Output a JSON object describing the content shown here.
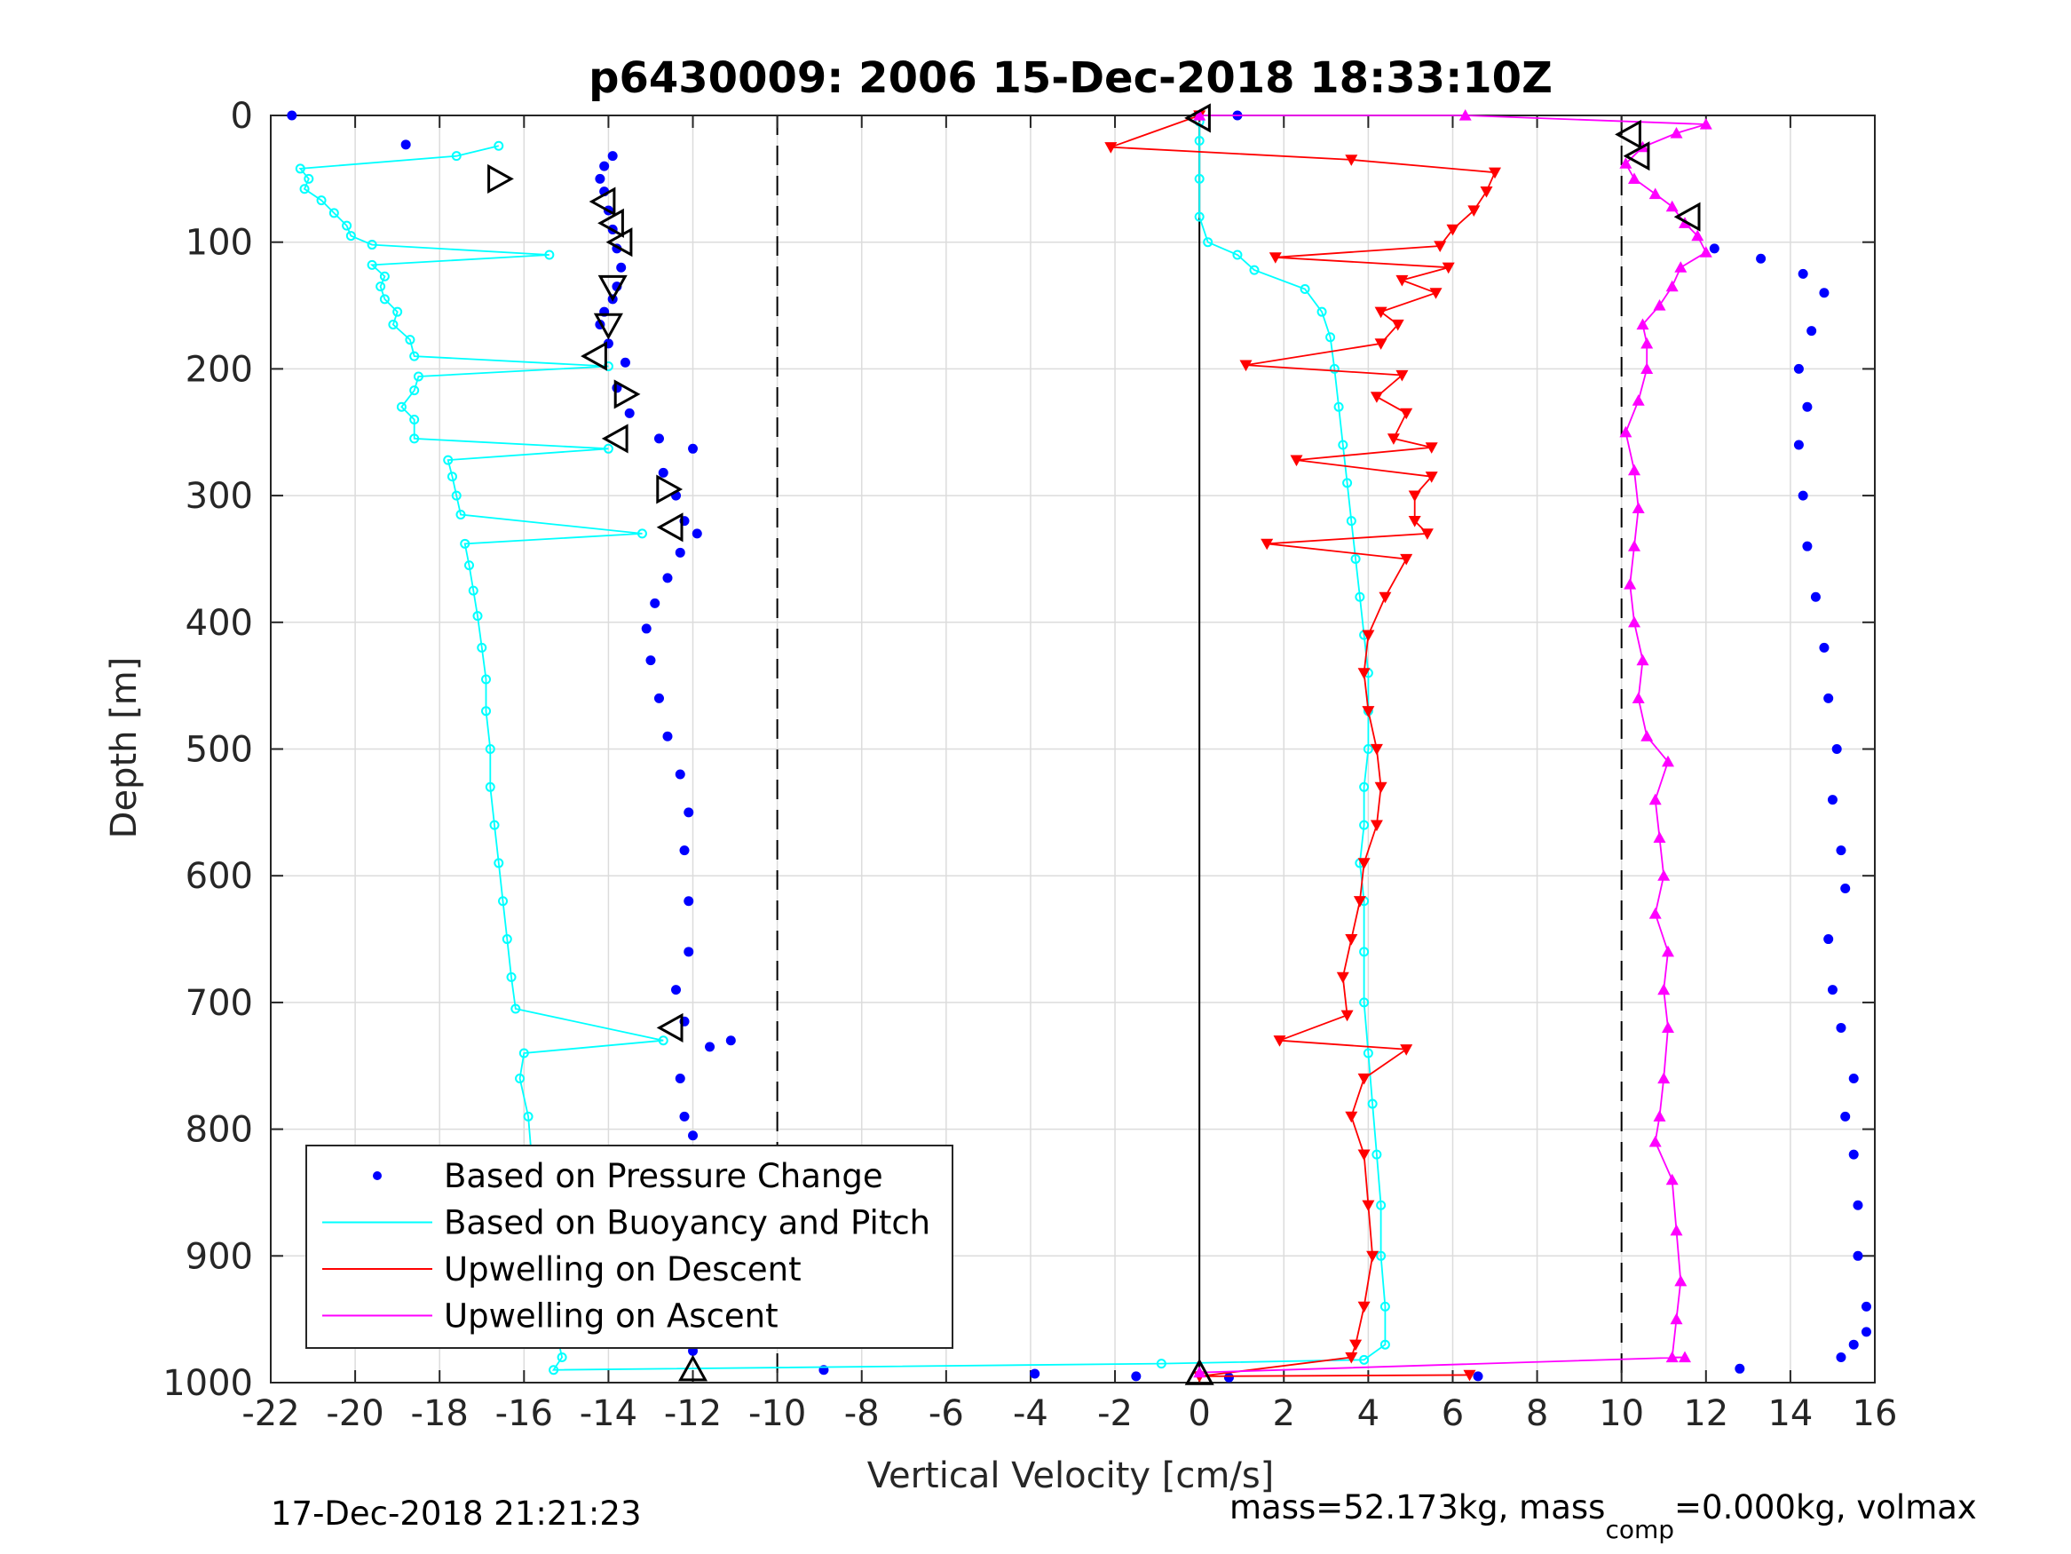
{
  "chart_data": {
    "type": "scatter",
    "title": "p6430009:  2006 15-Dec-2018 18:33:10Z",
    "xlabel": "Vertical Velocity [cm/s]",
    "ylabel": "Depth [m]",
    "xlim": [
      -22,
      16
    ],
    "ylim": [
      0,
      1000
    ],
    "y_reversed": true,
    "grid": true,
    "x_ticks": [
      -22,
      -20,
      -18,
      -16,
      -14,
      -12,
      -10,
      -8,
      -6,
      -4,
      -2,
      0,
      2,
      4,
      6,
      8,
      10,
      12,
      14,
      16
    ],
    "y_ticks": [
      0,
      100,
      200,
      300,
      400,
      500,
      600,
      700,
      800,
      900,
      1000
    ],
    "reference_lines": [
      {
        "x": -10,
        "style": "dashed"
      },
      {
        "x": 0,
        "style": "solid"
      },
      {
        "x": 10,
        "style": "dashed"
      }
    ],
    "legend": {
      "position": "bottom-left",
      "entries": [
        {
          "label": "Based on Pressure Change",
          "color": "#0000ff",
          "marker": "dot"
        },
        {
          "label": "Based on Buoyancy and Pitch",
          "color": "#00ffff",
          "marker": "line"
        },
        {
          "label": "Upwelling on Descent",
          "color": "#ff0000",
          "marker": "line"
        },
        {
          "label": "Upwelling on Ascent",
          "color": "#ff00ff",
          "marker": "line"
        }
      ]
    },
    "series": [
      {
        "name": "Based on Pressure Change",
        "color": "#0000ff",
        "style": "dots",
        "points": [
          [
            -21.5,
            0
          ],
          [
            -18.8,
            23
          ],
          [
            -13.9,
            32
          ],
          [
            -14.1,
            40
          ],
          [
            -14.2,
            50
          ],
          [
            -14.1,
            60
          ],
          [
            -14.0,
            75
          ],
          [
            -13.9,
            90
          ],
          [
            -13.8,
            105
          ],
          [
            -13.7,
            120
          ],
          [
            -13.8,
            135
          ],
          [
            -13.9,
            145
          ],
          [
            -14.1,
            155
          ],
          [
            -14.2,
            165
          ],
          [
            -14.0,
            180
          ],
          [
            -13.6,
            195
          ],
          [
            -13.8,
            215
          ],
          [
            -13.5,
            235
          ],
          [
            -12.8,
            255
          ],
          [
            -12.0,
            263
          ],
          [
            -12.7,
            282
          ],
          [
            -12.4,
            300
          ],
          [
            -12.2,
            320
          ],
          [
            -11.9,
            330
          ],
          [
            -12.3,
            345
          ],
          [
            -12.6,
            365
          ],
          [
            -12.9,
            385
          ],
          [
            -13.1,
            405
          ],
          [
            -13.0,
            430
          ],
          [
            -12.8,
            460
          ],
          [
            -12.6,
            490
          ],
          [
            -12.3,
            520
          ],
          [
            -12.1,
            550
          ],
          [
            -12.2,
            580
          ],
          [
            -12.1,
            620
          ],
          [
            -12.1,
            660
          ],
          [
            -12.4,
            690
          ],
          [
            -12.2,
            715
          ],
          [
            -11.1,
            730
          ],
          [
            -11.6,
            735
          ],
          [
            -12.3,
            760
          ],
          [
            -12.2,
            790
          ],
          [
            -12.0,
            805
          ],
          [
            -12.0,
            830
          ],
          [
            -12.0,
            860
          ],
          [
            -12.0,
            890
          ],
          [
            -12.0,
            920
          ],
          [
            -12.0,
            950
          ],
          [
            -12.0,
            975
          ],
          [
            -8.9,
            990
          ],
          [
            -3.9,
            993
          ],
          [
            -1.5,
            995
          ],
          [
            0.7,
            996
          ],
          [
            6.6,
            995
          ],
          [
            12.8,
            989
          ],
          [
            15.2,
            980
          ],
          [
            15.5,
            970
          ],
          [
            15.8,
            960
          ],
          [
            15.8,
            940
          ],
          [
            15.6,
            900
          ],
          [
            15.6,
            860
          ],
          [
            15.5,
            820
          ],
          [
            15.3,
            790
          ],
          [
            15.5,
            760
          ],
          [
            15.2,
            720
          ],
          [
            15.0,
            690
          ],
          [
            14.9,
            650
          ],
          [
            15.3,
            610
          ],
          [
            15.2,
            580
          ],
          [
            15.0,
            540
          ],
          [
            15.1,
            500
          ],
          [
            14.9,
            460
          ],
          [
            14.8,
            420
          ],
          [
            14.6,
            380
          ],
          [
            14.4,
            340
          ],
          [
            14.3,
            300
          ],
          [
            14.2,
            260
          ],
          [
            14.4,
            230
          ],
          [
            14.2,
            200
          ],
          [
            14.5,
            170
          ],
          [
            14.8,
            140
          ],
          [
            14.3,
            125
          ],
          [
            13.3,
            113
          ],
          [
            12.2,
            105
          ],
          [
            0.9,
            0
          ]
        ]
      },
      {
        "name": "Based on Buoyancy and Pitch",
        "color": "#00ffff",
        "style": "line-circles",
        "points": [
          [
            -16.6,
            24
          ],
          [
            -17.6,
            32
          ],
          [
            -21.3,
            42
          ],
          [
            -21.1,
            50
          ],
          [
            -21.2,
            58
          ],
          [
            -20.8,
            67
          ],
          [
            -20.5,
            77
          ],
          [
            -20.2,
            87
          ],
          [
            -20.1,
            95
          ],
          [
            -19.6,
            102
          ],
          [
            -15.4,
            110
          ],
          [
            -19.6,
            118
          ],
          [
            -19.3,
            127
          ],
          [
            -19.4,
            135
          ],
          [
            -19.3,
            145
          ],
          [
            -19.0,
            155
          ],
          [
            -19.1,
            165
          ],
          [
            -18.7,
            177
          ],
          [
            -18.6,
            190
          ],
          [
            -14.0,
            198
          ],
          [
            -18.5,
            206
          ],
          [
            -18.6,
            217
          ],
          [
            -18.9,
            230
          ],
          [
            -18.6,
            240
          ],
          [
            -18.6,
            255
          ],
          [
            -14.0,
            263
          ],
          [
            -17.8,
            272
          ],
          [
            -17.7,
            285
          ],
          [
            -17.6,
            300
          ],
          [
            -17.5,
            315
          ],
          [
            -13.2,
            330
          ],
          [
            -17.4,
            338
          ],
          [
            -17.3,
            355
          ],
          [
            -17.2,
            375
          ],
          [
            -17.1,
            395
          ],
          [
            -17.0,
            420
          ],
          [
            -16.9,
            445
          ],
          [
            -16.9,
            470
          ],
          [
            -16.8,
            500
          ],
          [
            -16.8,
            530
          ],
          [
            -16.7,
            560
          ],
          [
            -16.6,
            590
          ],
          [
            -16.5,
            620
          ],
          [
            -16.4,
            650
          ],
          [
            -16.3,
            680
          ],
          [
            -16.2,
            705
          ],
          [
            -12.7,
            730
          ],
          [
            -16.0,
            740
          ],
          [
            -16.1,
            760
          ],
          [
            -15.9,
            790
          ],
          [
            -15.8,
            830
          ],
          [
            -15.6,
            870
          ],
          [
            -15.5,
            910
          ],
          [
            -15.3,
            950
          ],
          [
            -15.1,
            980
          ],
          [
            -15.3,
            990
          ],
          [
            -0.9,
            985
          ],
          [
            3.9,
            982
          ],
          [
            4.4,
            970
          ],
          [
            4.4,
            940
          ],
          [
            4.3,
            900
          ],
          [
            4.3,
            860
          ],
          [
            4.2,
            820
          ],
          [
            4.1,
            780
          ],
          [
            4.0,
            740
          ],
          [
            3.9,
            700
          ],
          [
            3.9,
            660
          ],
          [
            3.9,
            620
          ],
          [
            3.8,
            590
          ],
          [
            3.9,
            560
          ],
          [
            3.9,
            530
          ],
          [
            4.0,
            500
          ],
          [
            4.0,
            470
          ],
          [
            4.0,
            440
          ],
          [
            3.9,
            410
          ],
          [
            3.8,
            380
          ],
          [
            3.7,
            350
          ],
          [
            3.6,
            320
          ],
          [
            3.5,
            290
          ],
          [
            3.4,
            260
          ],
          [
            3.3,
            230
          ],
          [
            3.2,
            200
          ],
          [
            3.1,
            175
          ],
          [
            2.9,
            155
          ],
          [
            2.5,
            137
          ],
          [
            1.3,
            122
          ],
          [
            0.9,
            110
          ],
          [
            0.2,
            100
          ],
          [
            0.0,
            80
          ],
          [
            0.0,
            50
          ],
          [
            0.0,
            20
          ],
          [
            0.0,
            5
          ]
        ]
      },
      {
        "name": "Upwelling on Descent",
        "color": "#ff0000",
        "style": "line-triangles-down",
        "points": [
          [
            0.0,
            0
          ],
          [
            -2.1,
            25
          ],
          [
            3.6,
            35
          ],
          [
            7.0,
            45
          ],
          [
            6.8,
            60
          ],
          [
            6.5,
            75
          ],
          [
            6.0,
            90
          ],
          [
            5.7,
            103
          ],
          [
            1.8,
            112
          ],
          [
            5.9,
            120
          ],
          [
            4.8,
            130
          ],
          [
            5.6,
            140
          ],
          [
            4.3,
            155
          ],
          [
            4.7,
            165
          ],
          [
            4.3,
            180
          ],
          [
            1.1,
            197
          ],
          [
            4.8,
            205
          ],
          [
            4.2,
            222
          ],
          [
            4.9,
            235
          ],
          [
            4.6,
            255
          ],
          [
            5.5,
            262
          ],
          [
            2.3,
            272
          ],
          [
            5.5,
            285
          ],
          [
            5.1,
            300
          ],
          [
            5.1,
            320
          ],
          [
            5.4,
            330
          ],
          [
            1.6,
            338
          ],
          [
            4.9,
            350
          ],
          [
            4.4,
            380
          ],
          [
            4.0,
            410
          ],
          [
            3.9,
            440
          ],
          [
            4.0,
            470
          ],
          [
            4.2,
            500
          ],
          [
            4.3,
            530
          ],
          [
            4.2,
            560
          ],
          [
            3.9,
            590
          ],
          [
            3.8,
            620
          ],
          [
            3.6,
            650
          ],
          [
            3.4,
            680
          ],
          [
            3.5,
            710
          ],
          [
            1.9,
            730
          ],
          [
            4.9,
            737
          ],
          [
            3.9,
            760
          ],
          [
            3.6,
            790
          ],
          [
            3.9,
            820
          ],
          [
            4.0,
            860
          ],
          [
            4.1,
            900
          ],
          [
            3.9,
            940
          ],
          [
            3.7,
            970
          ],
          [
            3.6,
            980
          ],
          [
            0.0,
            995
          ],
          [
            6.4,
            994
          ]
        ]
      },
      {
        "name": "Upwelling on Ascent",
        "color": "#ff00ff",
        "style": "line-triangles-up",
        "points": [
          [
            0.0,
            0
          ],
          [
            6.3,
            0
          ],
          [
            12.0,
            7
          ],
          [
            11.3,
            14
          ],
          [
            10.5,
            25
          ],
          [
            10.1,
            38
          ],
          [
            10.3,
            50
          ],
          [
            10.8,
            62
          ],
          [
            11.2,
            72
          ],
          [
            11.5,
            85
          ],
          [
            11.8,
            95
          ],
          [
            12.0,
            108
          ],
          [
            11.4,
            120
          ],
          [
            11.2,
            135
          ],
          [
            10.9,
            150
          ],
          [
            10.5,
            165
          ],
          [
            10.6,
            180
          ],
          [
            10.6,
            200
          ],
          [
            10.4,
            225
          ],
          [
            10.1,
            250
          ],
          [
            10.3,
            280
          ],
          [
            10.4,
            310
          ],
          [
            10.3,
            340
          ],
          [
            10.2,
            370
          ],
          [
            10.3,
            400
          ],
          [
            10.5,
            430
          ],
          [
            10.4,
            460
          ],
          [
            10.6,
            490
          ],
          [
            11.1,
            510
          ],
          [
            10.8,
            540
          ],
          [
            10.9,
            570
          ],
          [
            11.0,
            600
          ],
          [
            10.8,
            630
          ],
          [
            11.1,
            660
          ],
          [
            11.0,
            690
          ],
          [
            11.1,
            720
          ],
          [
            11.0,
            760
          ],
          [
            10.9,
            790
          ],
          [
            10.8,
            810
          ],
          [
            11.2,
            840
          ],
          [
            11.3,
            880
          ],
          [
            11.4,
            920
          ],
          [
            11.3,
            950
          ],
          [
            11.2,
            980
          ],
          [
            11.5,
            980
          ],
          [
            0.0,
            992
          ]
        ]
      },
      {
        "name": "Markers",
        "color": "#000000",
        "style": "open-triangles",
        "points": [
          [
            -16.6,
            50,
            "right"
          ],
          [
            -14.1,
            68,
            "left"
          ],
          [
            -13.9,
            85,
            "left"
          ],
          [
            -13.7,
            100,
            "left"
          ],
          [
            -13.9,
            135,
            "down"
          ],
          [
            -14.0,
            165,
            "down"
          ],
          [
            -14.3,
            190,
            "left"
          ],
          [
            -13.6,
            220,
            "right"
          ],
          [
            -13.8,
            255,
            "left"
          ],
          [
            -12.6,
            295,
            "right"
          ],
          [
            -12.5,
            325,
            "left"
          ],
          [
            -12.5,
            720,
            "left"
          ],
          [
            -12.0,
            990,
            "up"
          ],
          [
            0.0,
            2,
            "left"
          ],
          [
            10.2,
            15,
            "left"
          ],
          [
            10.4,
            32,
            "left"
          ],
          [
            11.6,
            80,
            "left"
          ],
          [
            0.0,
            993,
            "up"
          ]
        ]
      }
    ]
  },
  "footer": {
    "timestamp": "17-Dec-2018 21:21:23",
    "mass_prefix": "mass=52.173kg, mass",
    "mass_sub": "comp",
    "mass_suffix": "=0.000kg, volmax"
  }
}
